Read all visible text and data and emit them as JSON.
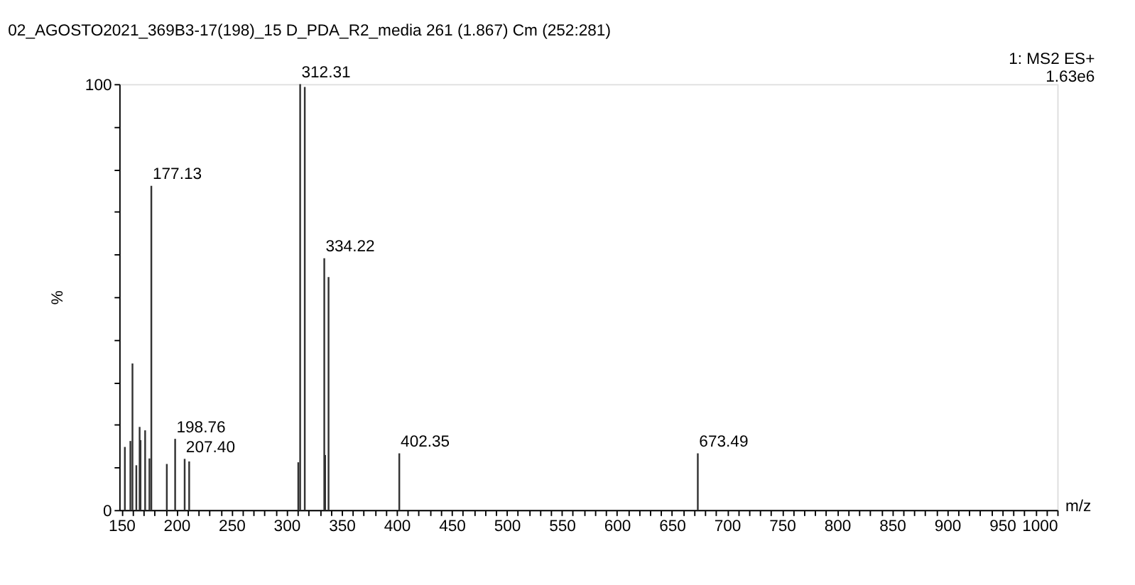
{
  "chart_data": {
    "type": "bar",
    "title": "02_AGOSTO2021_369B3-17(198)_15 D_PDA_R2_media 261 (1.867) Cm (252:281)",
    "annotations": [
      "1: MS2 ES+",
      "1.63e6",
      {
        "text": "177.13",
        "x": 177.13,
        "y": 76.1
      },
      {
        "text": "198.76",
        "x": 198.76,
        "y": 16.7
      },
      {
        "text": "207.40",
        "x": 207.4,
        "y": 12.0
      },
      {
        "text": "312.31",
        "x": 312.31,
        "y": 100
      },
      {
        "text": "334.22",
        "x": 334.22,
        "y": 59.1
      },
      {
        "text": "402.35",
        "x": 402.35,
        "y": 13.3
      },
      {
        "text": "673.49",
        "x": 673.49,
        "y": 13.3
      }
    ],
    "xlabel": "m/z",
    "ylabel": "%",
    "x": [
      153.1,
      158.1,
      160.0,
      163.5,
      166.5,
      167.3,
      171.5,
      175.4,
      177.13,
      191.2,
      198.76,
      207.4,
      211.5,
      310.6,
      312.31,
      316.5,
      334.22,
      335.0,
      338.1,
      402.35,
      673.49
    ],
    "values": [
      14.8,
      16.2,
      34.4,
      10.5,
      19.5,
      16.4,
      18.7,
      12.1,
      76.1,
      10.8,
      16.7,
      12.0,
      11.4,
      11.2,
      100,
      99.3,
      59.1,
      12.9,
      54.7,
      13.3,
      13.3
    ],
    "color": "#333333",
    "xlim": [
      148,
      1000
    ],
    "xticks": [
      150,
      {
        "value": 160,
        "label": null
      },
      {
        "value": 170,
        "label": null
      },
      {
        "value": 180,
        "label": null
      },
      {
        "value": 190,
        "label": null
      },
      200,
      {
        "value": 210,
        "label": null
      },
      {
        "value": 220,
        "label": null
      },
      {
        "value": 230,
        "label": null
      },
      {
        "value": 240,
        "label": null
      },
      250,
      {
        "value": 260,
        "label": null
      },
      {
        "value": 270,
        "label": null
      },
      {
        "value": 280,
        "label": null
      },
      {
        "value": 290,
        "label": null
      },
      300,
      {
        "value": 310,
        "label": null
      },
      {
        "value": 320,
        "label": null
      },
      {
        "value": 330,
        "label": null
      },
      {
        "value": 340,
        "label": null
      },
      350,
      {
        "value": 360,
        "label": null
      },
      {
        "value": 370,
        "label": null
      },
      {
        "value": 380,
        "label": null
      },
      {
        "value": 390,
        "label": null
      },
      400,
      {
        "value": 410,
        "label": null
      },
      {
        "value": 420,
        "label": null
      },
      {
        "value": 430,
        "label": null
      },
      {
        "value": 440,
        "label": null
      },
      450,
      {
        "value": 460,
        "label": null
      },
      {
        "value": 470,
        "label": null
      },
      {
        "value": 480,
        "label": null
      },
      {
        "value": 490,
        "label": null
      },
      500,
      {
        "value": 510,
        "label": null
      },
      {
        "value": 520,
        "label": null
      },
      {
        "value": 530,
        "label": null
      },
      {
        "value": 540,
        "label": null
      },
      550,
      {
        "value": 560,
        "label": null
      },
      {
        "value": 570,
        "label": null
      },
      {
        "value": 580,
        "label": null
      },
      {
        "value": 590,
        "label": null
      },
      600,
      {
        "value": 610,
        "label": null
      },
      {
        "value": 620,
        "label": null
      },
      {
        "value": 630,
        "label": null
      },
      {
        "value": 640,
        "label": null
      },
      650,
      {
        "value": 660,
        "label": null
      },
      {
        "value": 670,
        "label": null
      },
      {
        "value": 680,
        "label": null
      },
      {
        "value": 690,
        "label": null
      },
      700,
      {
        "value": 710,
        "label": null
      },
      {
        "value": 720,
        "label": null
      },
      {
        "value": 730,
        "label": null
      },
      {
        "value": 740,
        "label": null
      },
      750,
      {
        "value": 760,
        "label": null
      },
      {
        "value": 770,
        "label": null
      },
      {
        "value": 780,
        "label": null
      },
      {
        "value": 790,
        "label": null
      },
      800,
      {
        "value": 810,
        "label": null
      },
      {
        "value": 820,
        "label": null
      },
      {
        "value": 830,
        "label": null
      },
      {
        "value": 840,
        "label": null
      },
      850,
      {
        "value": 860,
        "label": null
      },
      {
        "value": 870,
        "label": null
      },
      {
        "value": 880,
        "label": null
      },
      {
        "value": 890,
        "label": null
      },
      900,
      {
        "value": 910,
        "label": null
      },
      {
        "value": 920,
        "label": null
      },
      {
        "value": 930,
        "label": null
      },
      {
        "value": 940,
        "label": null
      },
      950,
      {
        "value": 960,
        "label": null
      },
      {
        "value": 970,
        "label": null
      },
      {
        "value": 980,
        "label": null
      },
      {
        "value": 990,
        "label": null
      },
      1000
    ],
    "ylim": [
      0,
      100
    ],
    "yticks": [
      0,
      {
        "value": 10,
        "label": null
      },
      {
        "value": 20,
        "label": null
      },
      {
        "value": 30,
        "label": null
      },
      {
        "value": 40,
        "label": null
      },
      {
        "value": 50,
        "label": null
      },
      {
        "value": 60,
        "label": null
      },
      {
        "value": 70,
        "label": null
      },
      {
        "value": 80,
        "label": null
      },
      {
        "value": 90,
        "label": null
      },
      100
    ],
    "grid": false
  }
}
